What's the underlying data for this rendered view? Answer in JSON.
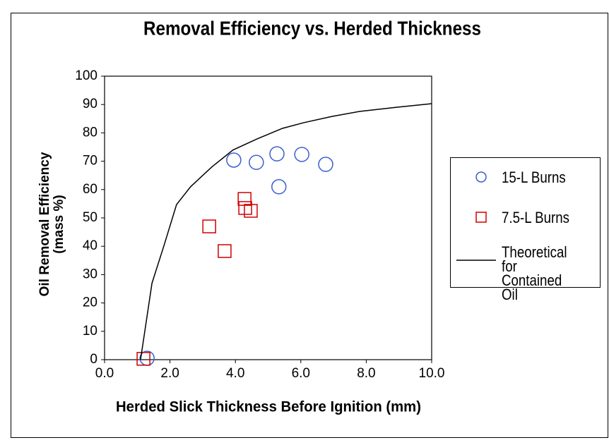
{
  "chart_data": {
    "type": "scatter",
    "title": "Removal Efficiency vs. Herded Thickness",
    "x_label": "Herded Slick Thickness Before Ignition (mm)",
    "y_label": [
      "Oil Removal Efficiency",
      "(mass %)"
    ],
    "xlim": [
      0,
      10
    ],
    "xticks": [
      {
        "value": 0,
        "label": "0.0"
      },
      {
        "value": 2,
        "label": "2.0"
      },
      {
        "value": 4,
        "label": "4.0"
      },
      {
        "value": 6,
        "label": "6.0"
      },
      {
        "value": 8,
        "label": "8.0"
      },
      {
        "value": 10,
        "label": "10.0"
      }
    ],
    "ylim": [
      0,
      100
    ],
    "yticks": [
      0,
      10,
      20,
      30,
      40,
      50,
      60,
      70,
      80,
      90,
      100
    ],
    "series": [
      {
        "name": "15-L Burns",
        "marker": "circle",
        "color": "#3a5fcd",
        "x": [
          1.3,
          3.95,
          4.64,
          5.27,
          5.33,
          6.03,
          6.76
        ],
        "values": [
          0.5,
          70.4,
          69.6,
          72.6,
          61,
          72.4,
          68.9
        ]
      },
      {
        "name": "7.5-L Burns",
        "marker": "square",
        "color": "#d00000",
        "x": [
          1.19,
          3.2,
          3.67,
          4.28,
          4.3,
          4.47
        ],
        "values": [
          0.3,
          47,
          38.3,
          56.7,
          53.5,
          52.5
        ]
      },
      {
        "name": "Theoretical for Contained Oil",
        "marker": "line",
        "color": "#000000",
        "x": [
          1.1,
          1.23,
          1.45,
          1.81,
          2.2,
          2.63,
          3.28,
          3.93,
          4.69,
          5.44,
          6.09,
          6.95,
          7.82,
          8.9,
          10
        ],
        "values": [
          0,
          10,
          27,
          40,
          54.7,
          61,
          68,
          74,
          78,
          81.6,
          83.6,
          85.8,
          87.6,
          89,
          90.3
        ]
      }
    ]
  }
}
